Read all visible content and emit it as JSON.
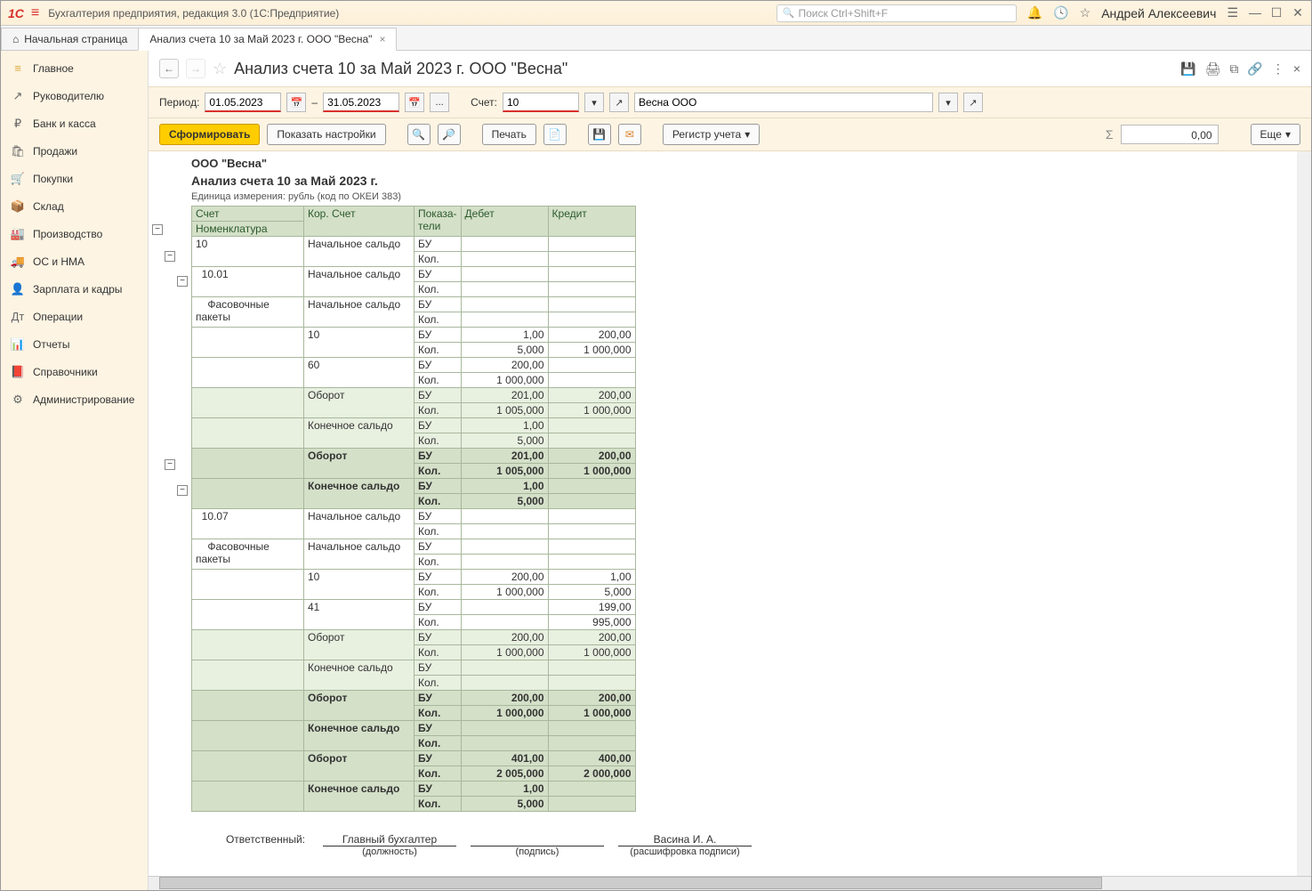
{
  "titlebar": {
    "app_title": "Бухгалтерия предприятия, редакция 3.0  (1С:Предприятие)",
    "search_placeholder": "Поиск Ctrl+Shift+F",
    "user": "Андрей Алексеевич"
  },
  "tabs": {
    "home": "Начальная страница",
    "active": "Анализ счета 10 за Май 2023 г. ООО \"Весна\""
  },
  "sidebar": [
    {
      "icon": "≡",
      "label": "Главное"
    },
    {
      "icon": "↗",
      "label": "Руководителю"
    },
    {
      "icon": "₽",
      "label": "Банк и касса"
    },
    {
      "icon": "🛍",
      "label": "Продажи"
    },
    {
      "icon": "🛒",
      "label": "Покупки"
    },
    {
      "icon": "📦",
      "label": "Склад"
    },
    {
      "icon": "🏭",
      "label": "Производство"
    },
    {
      "icon": "🚚",
      "label": "ОС и НМА"
    },
    {
      "icon": "👤",
      "label": "Зарплата и кадры"
    },
    {
      "icon": "Дт",
      "label": "Операции"
    },
    {
      "icon": "📊",
      "label": "Отчеты"
    },
    {
      "icon": "📕",
      "label": "Справочники"
    },
    {
      "icon": "⚙",
      "label": "Администрирование"
    }
  ],
  "page": {
    "title": "Анализ счета 10 за Май 2023 г. ООО \"Весна\""
  },
  "params": {
    "period_label": "Период:",
    "date_from": "01.05.2023",
    "dash": "–",
    "date_to": "31.05.2023",
    "dots": "...",
    "account_label": "Счет:",
    "account": "10",
    "org": "Весна ООО"
  },
  "toolbar": {
    "form": "Сформировать",
    "settings": "Показать настройки",
    "print": "Печать",
    "register": "Регистр учета",
    "sum": "0,00",
    "more": "Еще"
  },
  "report": {
    "org": "ООО \"Весна\"",
    "title": "Анализ счета 10 за Май 2023 г.",
    "unit": "Единица измерения: рубль (код по ОКЕИ 383)",
    "headers": {
      "acc": "Счет",
      "nom": "Номенклатура",
      "kor": "Кор. Счет",
      "ind": "Показа-\nтели",
      "deb": "Дебет",
      "kre": "Кредит"
    },
    "bu": "БУ",
    "kol": "Кол.",
    "rows": [
      {
        "a": "10",
        "k": "Начальное сальдо",
        "bu_d": "",
        "bu_k": "",
        "kol_d": "",
        "kol_k": "",
        "cls": ""
      },
      {
        "a": "  10.01",
        "k": "Начальное сальдо",
        "bu_d": "",
        "bu_k": "",
        "kol_d": "",
        "kol_k": "",
        "cls": ""
      },
      {
        "a": "    Фасовочные пакеты",
        "k": "Начальное сальдо",
        "bu_d": "",
        "bu_k": "",
        "kol_d": "",
        "kol_k": "",
        "cls": ""
      },
      {
        "a": "",
        "k": "10",
        "bu_d": "1,00",
        "bu_k": "200,00",
        "kol_d": "5,000",
        "kol_k": "1 000,000",
        "cls": ""
      },
      {
        "a": "",
        "k": "60",
        "bu_d": "200,00",
        "bu_k": "",
        "kol_d": "1 000,000",
        "kol_k": "",
        "cls": ""
      },
      {
        "a": "",
        "k": "Оборот",
        "bu_d": "201,00",
        "bu_k": "200,00",
        "kol_d": "1 005,000",
        "kol_k": "1 000,000",
        "cls": "shade1"
      },
      {
        "a": "",
        "k": "Конечное сальдо",
        "bu_d": "1,00",
        "bu_k": "",
        "kol_d": "5,000",
        "kol_k": "",
        "cls": "shade1"
      },
      {
        "a": "",
        "k": "Оборот",
        "bu_d": "201,00",
        "bu_k": "200,00",
        "kol_d": "1 005,000",
        "kol_k": "1 000,000",
        "cls": "shade2 bold"
      },
      {
        "a": "",
        "k": "Конечное сальдо",
        "bu_d": "1,00",
        "bu_k": "",
        "kol_d": "5,000",
        "kol_k": "",
        "cls": "shade2 bold"
      },
      {
        "a": "  10.07",
        "k": "Начальное сальдо",
        "bu_d": "",
        "bu_k": "",
        "kol_d": "",
        "kol_k": "",
        "cls": ""
      },
      {
        "a": "    Фасовочные пакеты",
        "k": "Начальное сальдо",
        "bu_d": "",
        "bu_k": "",
        "kol_d": "",
        "kol_k": "",
        "cls": ""
      },
      {
        "a": "",
        "k": "10",
        "bu_d": "200,00",
        "bu_k": "1,00",
        "kol_d": "1 000,000",
        "kol_k": "5,000",
        "cls": ""
      },
      {
        "a": "",
        "k": "41",
        "bu_d": "",
        "bu_k": "199,00",
        "kol_d": "",
        "kol_k": "995,000",
        "cls": ""
      },
      {
        "a": "",
        "k": "Оборот",
        "bu_d": "200,00",
        "bu_k": "200,00",
        "kol_d": "1 000,000",
        "kol_k": "1 000,000",
        "cls": "shade1"
      },
      {
        "a": "",
        "k": "Конечное сальдо",
        "bu_d": "",
        "bu_k": "",
        "kol_d": "",
        "kol_k": "",
        "cls": "shade1"
      },
      {
        "a": "",
        "k": "Оборот",
        "bu_d": "200,00",
        "bu_k": "200,00",
        "kol_d": "1 000,000",
        "kol_k": "1 000,000",
        "cls": "shade2 bold"
      },
      {
        "a": "",
        "k": "Конечное сальдо",
        "bu_d": "",
        "bu_k": "",
        "kol_d": "",
        "kol_k": "",
        "cls": "shade2 bold"
      },
      {
        "a": "",
        "k": "Оборот",
        "bu_d": "401,00",
        "bu_k": "400,00",
        "kol_d": "2 005,000",
        "kol_k": "2 000,000",
        "cls": "shade2 bold"
      },
      {
        "a": "",
        "k": "Конечное сальдо",
        "bu_d": "1,00",
        "bu_k": "",
        "kol_d": "5,000",
        "kol_k": "",
        "cls": "shade2 bold"
      }
    ],
    "sign": {
      "resp": "Ответственный:",
      "pos_val": "Главный бухгалтер",
      "pos": "(должность)",
      "sig": "(подпись)",
      "name_val": "Васина И. А.",
      "name": "(расшифровка подписи)"
    }
  }
}
